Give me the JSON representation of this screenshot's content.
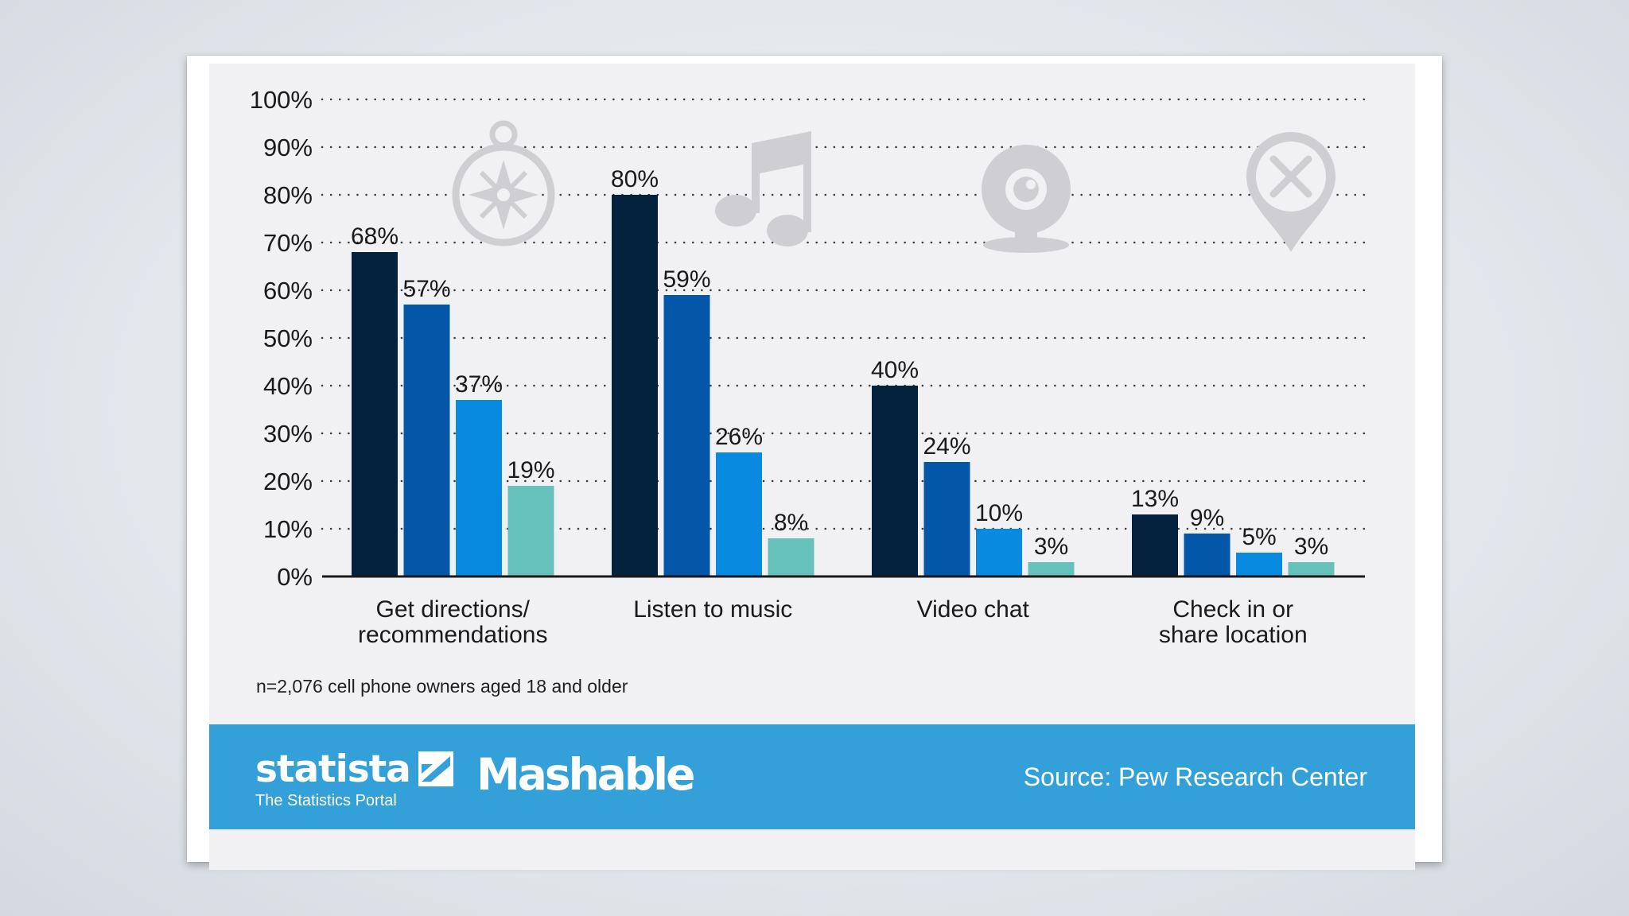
{
  "chart_data": {
    "type": "bar",
    "title": "",
    "xlabel": "",
    "ylabel": "",
    "ylim": [
      0,
      100
    ],
    "yticks": [
      "0%",
      "10%",
      "20%",
      "30%",
      "40%",
      "50%",
      "60%",
      "70%",
      "80%",
      "90%",
      "100%"
    ],
    "grid": "dotted horizontal",
    "categories": [
      [
        "Get directions/",
        "recommendations"
      ],
      [
        "Listen to music"
      ],
      [
        "Video chat"
      ],
      [
        "Check in or",
        "share location"
      ]
    ],
    "series": [
      {
        "name": "series-1",
        "color": "#04223d",
        "values": [
          68,
          80,
          40,
          13
        ]
      },
      {
        "name": "series-2",
        "color": "#0356a8",
        "values": [
          57,
          59,
          24,
          9
        ]
      },
      {
        "name": "series-3",
        "color": "#078ae0",
        "values": [
          37,
          26,
          10,
          5
        ]
      },
      {
        "name": "series-4",
        "color": "#66c1bb",
        "values": [
          19,
          8,
          3,
          3
        ]
      }
    ],
    "value_labels": [
      [
        "68%",
        "80%",
        "40%",
        "13%"
      ],
      [
        "57%",
        "59%",
        "24%",
        "9%"
      ],
      [
        "37%",
        "26%",
        "10%",
        "5%"
      ],
      [
        "19%",
        "8%",
        "3%",
        "3%"
      ]
    ],
    "category_icons": [
      "compass-icon",
      "music-note-icon",
      "webcam-icon",
      "location-pin-x-icon"
    ]
  },
  "note": "n=2,076 cell phone owners aged 18 and older",
  "footer": {
    "statista_name": "statista",
    "statista_tagline": "The Statistics Portal",
    "mashable_name": "Mashable",
    "source": "Source: Pew Research Center"
  },
  "colors": {
    "footer_bg": "#33a0da",
    "panel_bg": "#f1f1f3",
    "icon_gray": "#cfcfd3"
  }
}
